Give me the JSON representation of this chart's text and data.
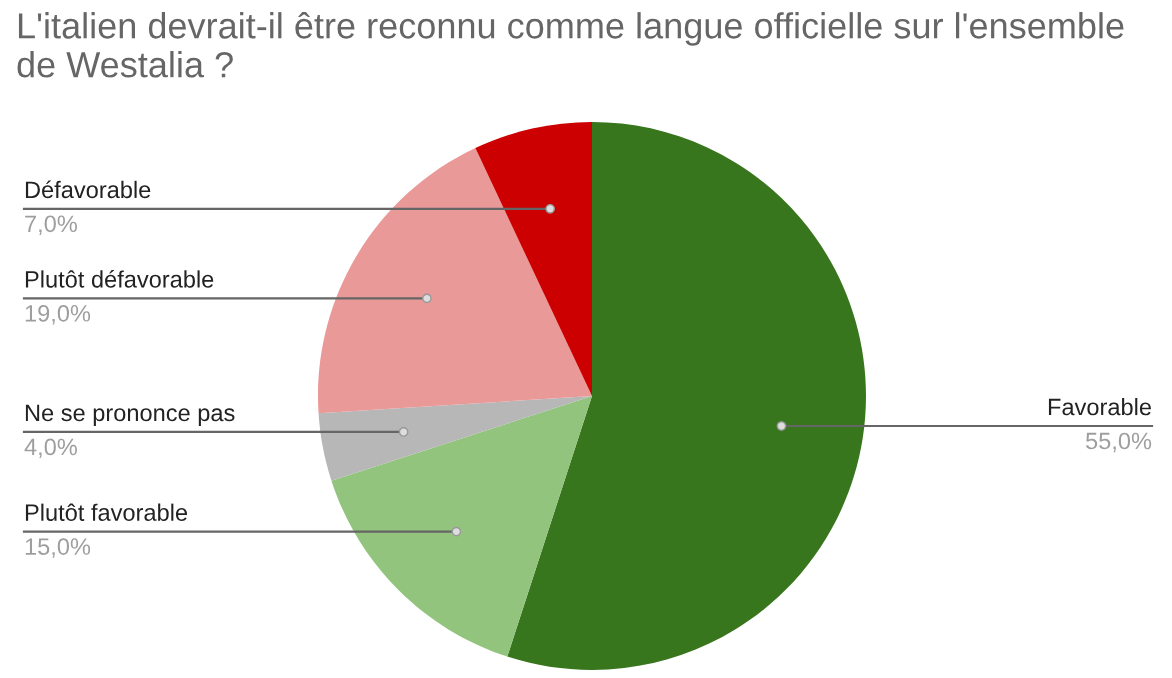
{
  "chart_data": {
    "type": "pie",
    "title": "L'italien devrait-il être reconnu comme langue officielle sur l'ensemble de Westalia ?",
    "categories": [
      "Favorable",
      "Plutôt favorable",
      "Ne se prononce pas",
      "Plutôt défavorable",
      "Défavorable"
    ],
    "values": [
      55,
      15,
      4,
      19,
      7
    ],
    "value_labels": [
      "55,0%",
      "15,0%",
      "4,0%",
      "19,0%",
      "7,0%"
    ],
    "colors": [
      "#38761d",
      "#93c47d",
      "#b7b7b7",
      "#ea9999",
      "#cc0000"
    ]
  }
}
